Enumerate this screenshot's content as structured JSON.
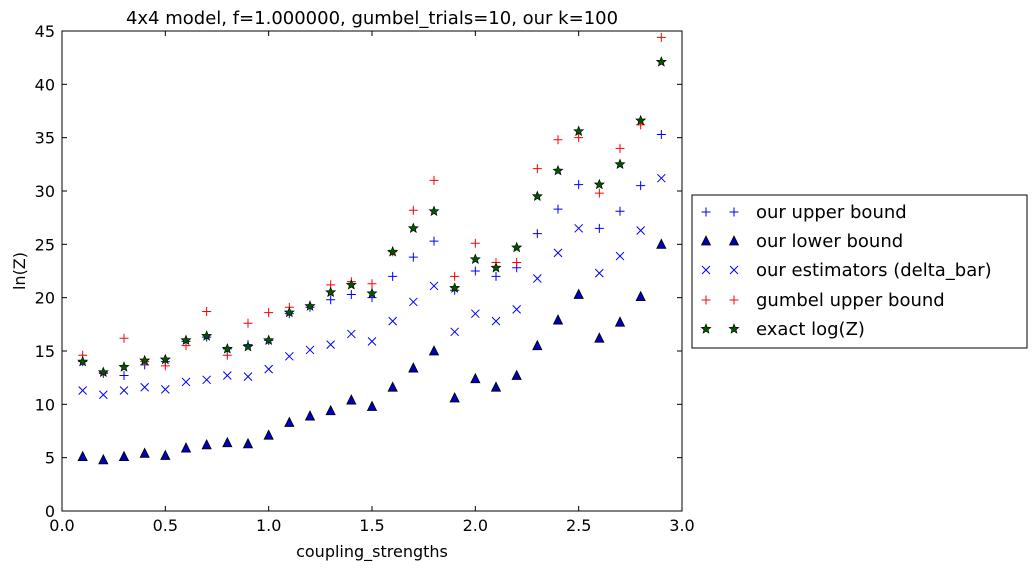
{
  "chart_data": {
    "type": "scatter",
    "title": "4x4 model, f=1.000000, gumbel_trials=10, our k=100",
    "xlabel": "coupling_strengths",
    "ylabel": "ln(Z)",
    "xlim": [
      0.0,
      3.0
    ],
    "ylim": [
      0,
      45
    ],
    "x_ticks": [
      "0.0",
      "0.5",
      "1.0",
      "1.5",
      "2.0",
      "2.5",
      "3.0"
    ],
    "y_ticks": [
      "0",
      "5",
      "10",
      "15",
      "20",
      "25",
      "30",
      "35",
      "40",
      "45"
    ],
    "grid": false,
    "legend_position": "right, outside plot",
    "x": [
      0.1,
      0.2,
      0.3,
      0.4,
      0.5,
      0.6,
      0.7,
      0.8,
      0.9,
      1.0,
      1.1,
      1.2,
      1.3,
      1.4,
      1.5,
      1.6,
      1.7,
      1.8,
      1.9,
      2.0,
      2.1,
      2.2,
      2.3,
      2.4,
      2.5,
      2.6,
      2.7,
      2.8,
      2.9
    ],
    "series": [
      {
        "name": "our upper bound",
        "marker": "plus",
        "color": "#0000ff",
        "values": [
          14.0,
          12.9,
          12.7,
          13.7,
          14.0,
          15.9,
          16.3,
          15.2,
          15.6,
          16.0,
          18.5,
          19.1,
          19.8,
          20.3,
          20.0,
          22.0,
          23.8,
          25.3,
          20.7,
          22.5,
          22.0,
          22.8,
          26.0,
          28.3,
          30.6,
          26.5,
          28.1,
          30.5,
          35.3
        ]
      },
      {
        "name": "our lower bound",
        "marker": "triangle",
        "color": "#0000bb",
        "values": [
          5.1,
          4.8,
          5.1,
          5.4,
          5.2,
          5.9,
          6.2,
          6.4,
          6.3,
          7.1,
          8.3,
          8.9,
          9.4,
          10.4,
          9.8,
          11.6,
          13.4,
          15.0,
          10.6,
          12.4,
          11.6,
          12.7,
          15.5,
          17.9,
          20.3,
          16.2,
          17.7,
          20.1,
          25.0
        ]
      },
      {
        "name": "our estimators (delta_bar)",
        "marker": "x",
        "color": "#0000ff",
        "values": [
          11.3,
          10.9,
          11.3,
          11.6,
          11.4,
          12.1,
          12.3,
          12.7,
          12.6,
          13.3,
          14.5,
          15.1,
          15.6,
          16.6,
          15.9,
          17.8,
          19.6,
          21.1,
          16.8,
          18.5,
          17.8,
          18.9,
          21.8,
          24.2,
          26.5,
          22.3,
          23.9,
          26.3,
          31.2
        ]
      },
      {
        "name": "gumbel upper bound",
        "marker": "plus",
        "color": "#ff0000",
        "values": [
          14.6,
          13.0,
          16.2,
          14.0,
          13.6,
          15.5,
          18.7,
          14.6,
          17.6,
          18.6,
          19.1,
          19.3,
          21.2,
          21.5,
          21.3,
          24.3,
          28.2,
          31.0,
          22.0,
          25.1,
          23.3,
          23.3,
          32.1,
          34.8,
          35.0,
          29.8,
          34.0,
          36.2,
          44.4
        ]
      },
      {
        "name": "exact log(Z)",
        "marker": "star",
        "color": "#005500",
        "values": [
          14.0,
          13.0,
          13.5,
          14.1,
          14.2,
          16.0,
          16.4,
          15.2,
          15.4,
          16.0,
          18.6,
          19.2,
          20.5,
          21.2,
          20.4,
          24.3,
          26.5,
          28.1,
          20.9,
          23.6,
          22.8,
          24.7,
          29.5,
          31.9,
          35.6,
          30.6,
          32.5,
          36.6,
          42.1
        ]
      }
    ]
  }
}
